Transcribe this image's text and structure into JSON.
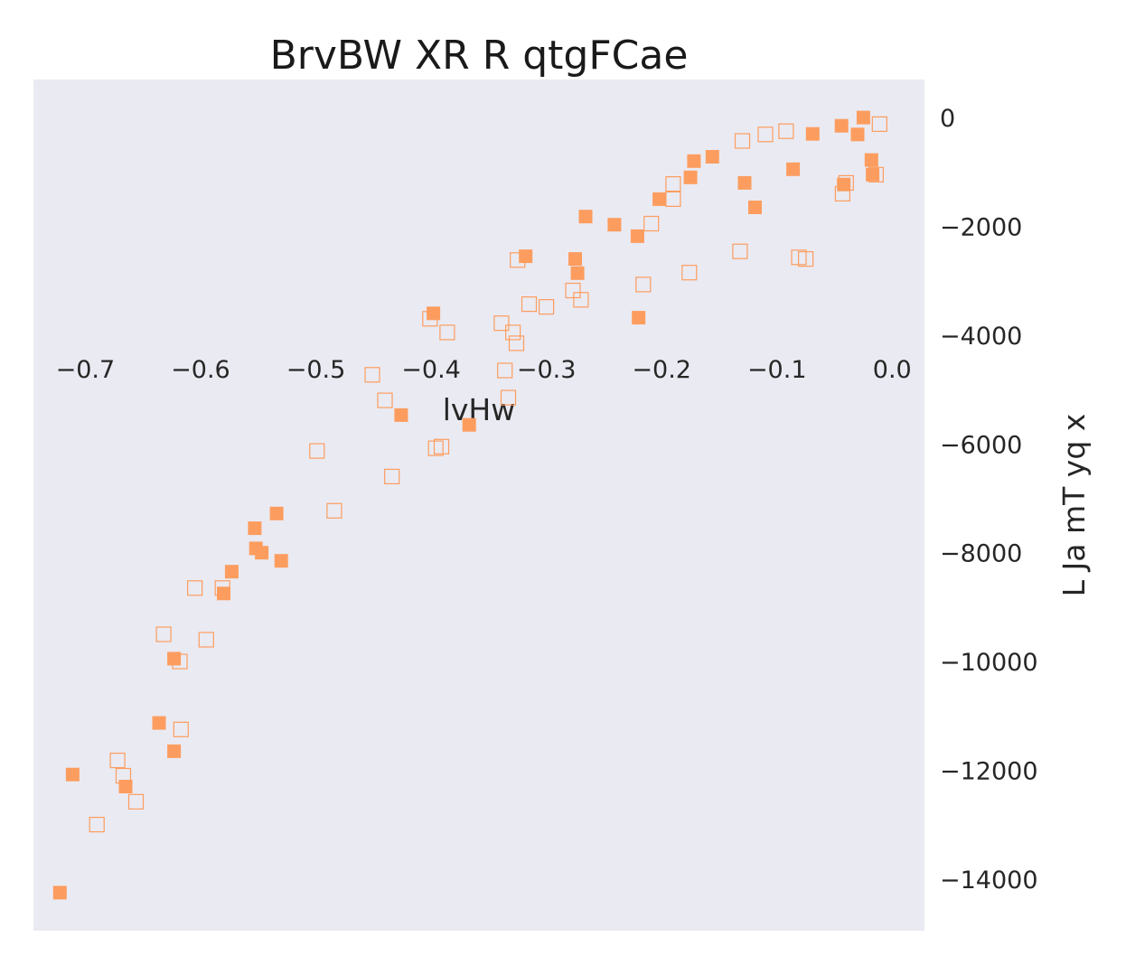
{
  "chart_data": {
    "type": "scatter",
    "title": "BrvBW XR R qtgFCae",
    "xlabel": "lvHw",
    "ylabel": "L Ja mT yq x",
    "xlim": [
      -0.745,
      0.028
    ],
    "ylim": [
      -14950,
      700
    ],
    "x_ticks": [
      -0.7,
      -0.6,
      -0.5,
      -0.4,
      -0.3,
      -0.2,
      -0.1,
      0.0
    ],
    "x_tick_labels": [
      "−0.7",
      "−0.6",
      "−0.5",
      "−0.4",
      "−0.3",
      "−0.2",
      "−0.1",
      "0.0"
    ],
    "y_ticks": [
      0,
      -2000,
      -4000,
      -6000,
      -8000,
      -10000,
      -12000,
      -14000
    ],
    "y_tick_labels": [
      "0",
      "−2000",
      "−4000",
      "−6000",
      "−8000",
      "−10000",
      "−12000",
      "−14000"
    ],
    "x_axis_position": "inside plot near y≈-4600",
    "y_axis_position": "right",
    "grid": false,
    "background": "#eaeaf2",
    "color": "#fc9d5f",
    "series": [
      {
        "marker": "filled-square",
        "points": [
          [
            -0.722,
            -14250
          ],
          [
            -0.711,
            -12080
          ],
          [
            -0.665,
            -12300
          ],
          [
            -0.636,
            -11130
          ],
          [
            -0.623,
            -11650
          ],
          [
            -0.623,
            -9950
          ],
          [
            -0.58,
            -8750
          ],
          [
            -0.573,
            -8350
          ],
          [
            -0.553,
            -7550
          ],
          [
            -0.552,
            -7920
          ],
          [
            -0.547,
            -8000
          ],
          [
            -0.534,
            -7280
          ],
          [
            -0.53,
            -8150
          ],
          [
            -0.426,
            -5470
          ],
          [
            -0.398,
            -3600
          ],
          [
            -0.367,
            -5650
          ],
          [
            -0.318,
            -2550
          ],
          [
            -0.275,
            -2600
          ],
          [
            -0.273,
            -2860
          ],
          [
            -0.266,
            -1820
          ],
          [
            -0.241,
            -1970
          ],
          [
            -0.221,
            -2180
          ],
          [
            -0.22,
            -3680
          ],
          [
            -0.202,
            -1500
          ],
          [
            -0.175,
            -1100
          ],
          [
            -0.172,
            -800
          ],
          [
            -0.156,
            -720
          ],
          [
            -0.128,
            -1200
          ],
          [
            -0.119,
            -1650
          ],
          [
            -0.086,
            -950
          ],
          [
            -0.069,
            -300
          ],
          [
            -0.044,
            -150
          ],
          [
            -0.042,
            -1230
          ],
          [
            -0.03,
            -310
          ],
          [
            -0.025,
            0
          ],
          [
            -0.018,
            -780
          ],
          [
            -0.017,
            -1050
          ]
        ]
      },
      {
        "marker": "hollow-square",
        "points": [
          [
            -0.69,
            -13000
          ],
          [
            -0.672,
            -11820
          ],
          [
            -0.667,
            -12100
          ],
          [
            -0.656,
            -12580
          ],
          [
            -0.632,
            -9500
          ],
          [
            -0.618,
            -10000
          ],
          [
            -0.617,
            -11250
          ],
          [
            -0.605,
            -8650
          ],
          [
            -0.595,
            -9600
          ],
          [
            -0.581,
            -8650
          ],
          [
            -0.499,
            -6130
          ],
          [
            -0.484,
            -7230
          ],
          [
            -0.451,
            -4730
          ],
          [
            -0.44,
            -5200
          ],
          [
            -0.434,
            -6600
          ],
          [
            -0.401,
            -3700
          ],
          [
            -0.396,
            -6080
          ],
          [
            -0.391,
            -6050
          ],
          [
            -0.386,
            -3950
          ],
          [
            -0.339,
            -3780
          ],
          [
            -0.336,
            -4650
          ],
          [
            -0.333,
            -5150
          ],
          [
            -0.329,
            -3950
          ],
          [
            -0.326,
            -4150
          ],
          [
            -0.325,
            -2620
          ],
          [
            -0.315,
            -3430
          ],
          [
            -0.3,
            -3480
          ],
          [
            -0.277,
            -3180
          ],
          [
            -0.27,
            -3350
          ],
          [
            -0.216,
            -3070
          ],
          [
            -0.209,
            -1950
          ],
          [
            -0.19,
            -1220
          ],
          [
            -0.19,
            -1500
          ],
          [
            -0.176,
            -2850
          ],
          [
            -0.132,
            -2460
          ],
          [
            -0.13,
            -430
          ],
          [
            -0.11,
            -310
          ],
          [
            -0.092,
            -250
          ],
          [
            -0.081,
            -2570
          ],
          [
            -0.075,
            -2600
          ],
          [
            -0.043,
            -1400
          ],
          [
            -0.04,
            -1200
          ],
          [
            -0.014,
            -1050
          ],
          [
            -0.011,
            -120
          ]
        ]
      }
    ]
  }
}
